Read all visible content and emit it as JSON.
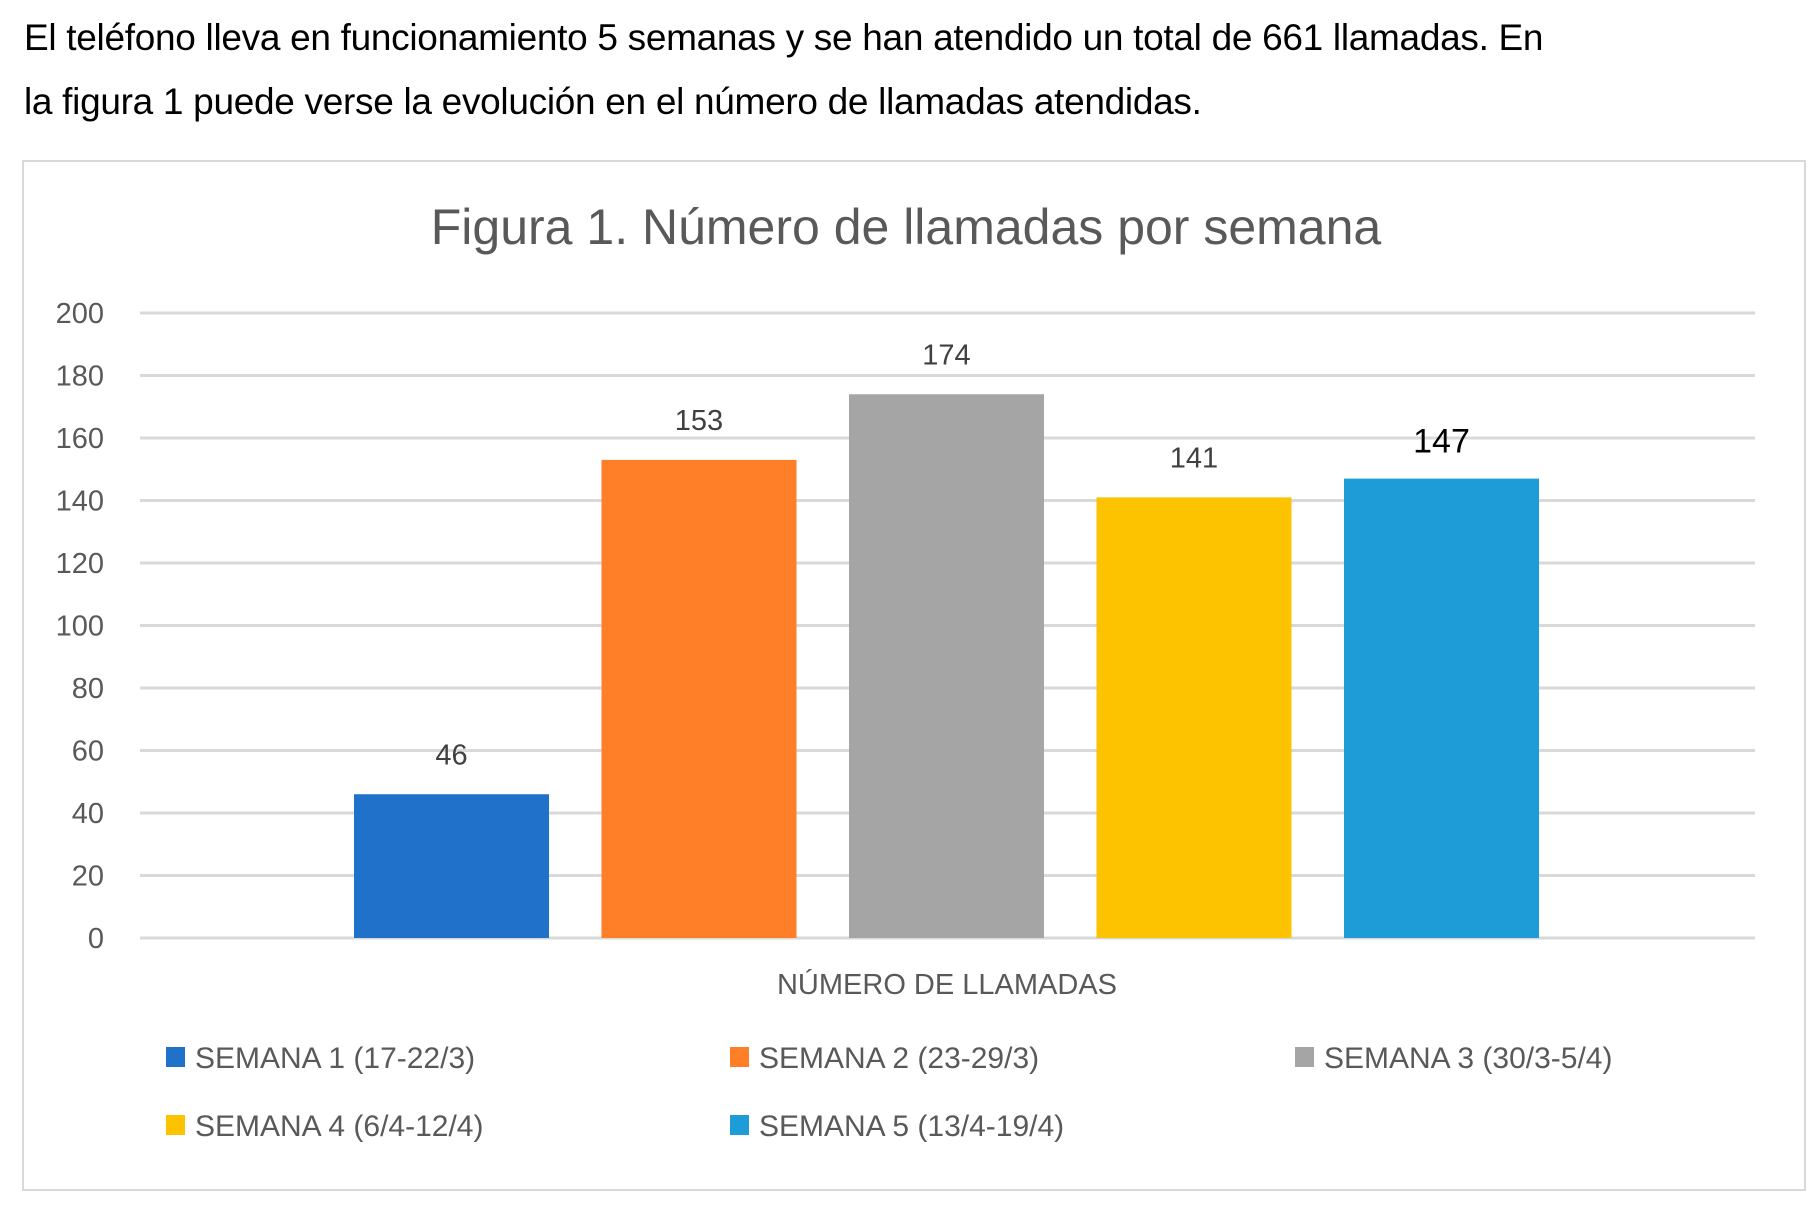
{
  "intro_text": {
    "line1": "El teléfono lleva en funcionamiento 5 semanas y se han atendido un total de 661 llamadas. En",
    "line2": "la figura 1 puede verse la evolución en el número de llamadas atendidas."
  },
  "chart_data": {
    "type": "bar",
    "title": "Figura 1. Número de llamadas por semana",
    "xlabel": "NÚMERO DE LLAMADAS",
    "ylabel": "",
    "ylim": [
      0,
      200
    ],
    "yticks": [
      0,
      20,
      40,
      60,
      80,
      100,
      120,
      140,
      160,
      180,
      200
    ],
    "grid": true,
    "legend_position": "bottom",
    "categories": [
      "NÚMERO DE LLAMADAS"
    ],
    "series": [
      {
        "name": "SEMANA 1 (17-22/3)",
        "values": [
          46
        ],
        "color": "#1f71c9"
      },
      {
        "name": "SEMANA 2 (23-29/3)",
        "values": [
          153
        ],
        "color": "#fe7f28"
      },
      {
        "name": "SEMANA 3 (30/3-5/4)",
        "values": [
          174
        ],
        "color": "#a5a5a5"
      },
      {
        "name": "SEMANA 4 (6/4-12/4)",
        "values": [
          141
        ],
        "color": "#fdc200"
      },
      {
        "name": "SEMANA 5 (13/4-19/4)",
        "values": [
          147
        ],
        "color": "#1e9cd8"
      }
    ],
    "data_labels": [
      "46",
      "153",
      "174",
      "141",
      "147"
    ]
  }
}
